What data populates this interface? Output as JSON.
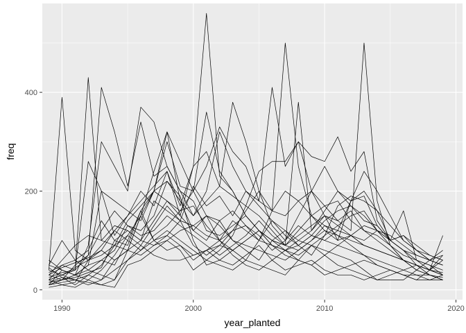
{
  "chart_data": {
    "type": "line",
    "title": "",
    "xlabel": "year_planted",
    "ylabel": "freq",
    "xlim": [
      1988.5,
      2020.5
    ],
    "ylim": [
      -20,
      580
    ],
    "x_ticks": [
      1990,
      2000,
      2010,
      2020
    ],
    "y_ticks": [
      0,
      200,
      400
    ],
    "x_minor": [
      1995,
      2005,
      2015
    ],
    "y_minor": [
      100,
      300,
      500
    ],
    "grid": true,
    "legend": "none",
    "colors": {
      "panel": "#ebebeb",
      "grid": "#ffffff",
      "line": "#000000",
      "tick": "#333333"
    },
    "x": [
      1989,
      1990,
      1991,
      1992,
      1993,
      1994,
      1995,
      1996,
      1997,
      1998,
      1999,
      2000,
      2001,
      2002,
      2003,
      2004,
      2005,
      2006,
      2007,
      2008,
      2009,
      2010,
      2011,
      2012,
      2013,
      2014,
      2015,
      2016,
      2017,
      2018,
      2019
    ],
    "series": [
      {
        "values": [
          40,
          390,
          80,
          60,
          90,
          120,
          150,
          180,
          210,
          240,
          170,
          250,
          560,
          230,
          200,
          150,
          120,
          90,
          80,
          60,
          50,
          70,
          90,
          110,
          130,
          120,
          100,
          80,
          50,
          30,
          20
        ]
      },
      {
        "values": [
          20,
          30,
          40,
          430,
          100,
          90,
          80,
          150,
          240,
          320,
          180,
          120,
          150,
          130,
          100,
          90,
          80,
          70,
          60,
          80,
          100,
          120,
          110,
          100,
          90,
          80,
          70,
          60,
          40,
          30,
          25
        ]
      },
      {
        "values": [
          30,
          20,
          50,
          70,
          410,
          320,
          210,
          340,
          230,
          250,
          200,
          180,
          120,
          110,
          130,
          150,
          120,
          100,
          90,
          110,
          130,
          150,
          130,
          110,
          100,
          120,
          90,
          60,
          50,
          40,
          30
        ]
      },
      {
        "values": [
          10,
          40,
          30,
          90,
          300,
          250,
          200,
          370,
          340,
          250,
          200,
          150,
          180,
          210,
          380,
          300,
          200,
          160,
          500,
          250,
          150,
          120,
          100,
          180,
          200,
          160,
          100,
          80,
          60,
          50,
          30
        ]
      },
      {
        "values": [
          50,
          100,
          60,
          40,
          30,
          20,
          80,
          150,
          200,
          320,
          260,
          200,
          250,
          330,
          280,
          250,
          180,
          410,
          250,
          300,
          200,
          150,
          140,
          120,
          500,
          180,
          90,
          60,
          40,
          30,
          20
        ]
      },
      {
        "values": [
          20,
          50,
          40,
          260,
          200,
          180,
          160,
          140,
          200,
          300,
          210,
          200,
          360,
          240,
          200,
          150,
          120,
          100,
          90,
          380,
          120,
          150,
          100,
          110,
          90,
          80,
          70,
          60,
          50,
          40,
          30
        ]
      },
      {
        "values": [
          60,
          40,
          30,
          50,
          200,
          110,
          150,
          200,
          170,
          240,
          150,
          250,
          280,
          210,
          190,
          170,
          240,
          260,
          260,
          300,
          270,
          260,
          310,
          240,
          280,
          140,
          100,
          160,
          60,
          40,
          35
        ]
      },
      {
        "values": [
          10,
          20,
          30,
          40,
          60,
          80,
          130,
          120,
          150,
          220,
          180,
          150,
          200,
          320,
          250,
          200,
          180,
          160,
          200,
          180,
          150,
          130,
          120,
          180,
          240,
          200,
          150,
          100,
          80,
          60,
          50
        ]
      },
      {
        "values": [
          30,
          60,
          90,
          110,
          100,
          130,
          120,
          100,
          140,
          180,
          160,
          170,
          130,
          100,
          120,
          160,
          200,
          130,
          100,
          150,
          200,
          250,
          200,
          180,
          190,
          130,
          100,
          110,
          90,
          70,
          60
        ]
      },
      {
        "values": [
          40,
          30,
          20,
          10,
          20,
          60,
          80,
          70,
          90,
          100,
          120,
          130,
          150,
          140,
          160,
          130,
          100,
          90,
          80,
          100,
          120,
          160,
          200,
          170,
          140,
          130,
          100,
          80,
          70,
          60,
          80
        ]
      },
      {
        "values": [
          5,
          10,
          15,
          60,
          80,
          120,
          100,
          80,
          110,
          130,
          160,
          200,
          150,
          100,
          80,
          60,
          100,
          140,
          120,
          100,
          90,
          80,
          70,
          60,
          40,
          20,
          30,
          40,
          50,
          40,
          30
        ]
      },
      {
        "values": [
          15,
          20,
          30,
          50,
          60,
          50,
          100,
          160,
          100,
          80,
          90,
          60,
          80,
          100,
          70,
          50,
          40,
          60,
          80,
          70,
          90,
          70,
          50,
          40,
          30,
          20,
          20,
          20,
          40,
          60,
          70
        ]
      },
      {
        "values": [
          20,
          10,
          5,
          20,
          10,
          20,
          60,
          90,
          70,
          60,
          60,
          70,
          80,
          60,
          50,
          70,
          90,
          60,
          40,
          50,
          60,
          40,
          30,
          30,
          20,
          30,
          40,
          30,
          20,
          40,
          70
        ]
      },
      {
        "values": [
          10,
          15,
          20,
          15,
          10,
          5,
          50,
          60,
          80,
          100,
          80,
          40,
          60,
          50,
          40,
          60,
          50,
          40,
          30,
          60,
          50,
          30,
          40,
          50,
          60,
          50,
          40,
          30,
          20,
          20,
          30
        ]
      },
      {
        "values": [
          25,
          35,
          40,
          70,
          120,
          160,
          130,
          110,
          120,
          150,
          130,
          110,
          90,
          70,
          90,
          110,
          140,
          110,
          90,
          120,
          150,
          170,
          140,
          160,
          120,
          100,
          80,
          60,
          50,
          40,
          60
        ]
      },
      {
        "values": [
          35,
          50,
          60,
          80,
          140,
          100,
          120,
          100,
          180,
          160,
          140,
          130,
          110,
          100,
          140,
          120,
          100,
          160,
          150,
          180,
          200,
          170,
          180,
          140,
          120,
          110,
          90,
          70,
          60,
          50,
          40
        ]
      },
      {
        "values": [
          45,
          25,
          20,
          30,
          50,
          90,
          140,
          170,
          200,
          180,
          150,
          120,
          100,
          140,
          100,
          80,
          60,
          100,
          120,
          90,
          70,
          110,
          130,
          150,
          160,
          120,
          110,
          90,
          70,
          60,
          50
        ]
      },
      {
        "values": [
          10,
          20,
          25,
          35,
          45,
          100,
          90,
          160,
          200,
          220,
          190,
          100,
          50,
          60,
          80,
          100,
          120,
          90,
          70,
          60,
          90,
          110,
          170,
          190,
          180,
          160,
          130,
          100,
          80,
          70,
          60
        ]
      },
      {
        "values": [
          50,
          40,
          30,
          20,
          40,
          70,
          110,
          90,
          130,
          170,
          140,
          90,
          70,
          90,
          120,
          130,
          110,
          80,
          100,
          130,
          110,
          100,
          90,
          80,
          70,
          50,
          40,
          30,
          30,
          20,
          20
        ]
      },
      {
        "values": [
          20,
          30,
          45,
          60,
          70,
          90,
          110,
          150,
          100,
          120,
          100,
          80,
          60,
          80,
          110,
          170,
          150,
          120,
          90,
          80,
          100,
          130,
          110,
          90,
          70,
          60,
          50,
          40,
          30,
          30,
          20
        ]
      },
      {
        "values": [
          30,
          45,
          55,
          65,
          80,
          60,
          80,
          100,
          90,
          110,
          140,
          210,
          170,
          190,
          150,
          200,
          170,
          140,
          110,
          90,
          110,
          140,
          160,
          170,
          150,
          120,
          100,
          110,
          80,
          60,
          50
        ]
      },
      {
        "values": [
          15,
          25,
          10,
          30,
          20,
          40,
          60,
          80,
          100,
          110,
          90,
          70,
          80,
          90,
          80,
          100,
          120,
          100,
          80,
          90,
          110,
          100,
          120,
          110,
          90,
          80,
          70,
          60,
          50,
          40,
          110
        ]
      }
    ]
  }
}
